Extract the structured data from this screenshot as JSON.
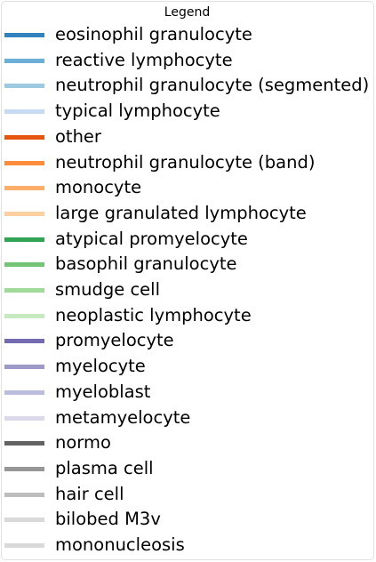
{
  "chart_data": {
    "type": "line",
    "legend": {
      "title": "Legend",
      "entries": [
        {
          "label": "eosinophil granulocyte",
          "color": "#3182bd"
        },
        {
          "label": "reactive lymphocyte",
          "color": "#6baed6"
        },
        {
          "label": "neutrophil granulocyte (segmented)",
          "color": "#9ecae1"
        },
        {
          "label": "typical lymphocyte",
          "color": "#c6dbef"
        },
        {
          "label": "other",
          "color": "#e6550d"
        },
        {
          "label": "neutrophil granulocyte (band)",
          "color": "#fd8d3c"
        },
        {
          "label": "monocyte",
          "color": "#fdae6b"
        },
        {
          "label": "large granulated lymphocyte",
          "color": "#fdd0a2"
        },
        {
          "label": "atypical promyelocyte",
          "color": "#31a354"
        },
        {
          "label": "basophil granulocyte",
          "color": "#74c476"
        },
        {
          "label": "smudge cell",
          "color": "#a1d99b"
        },
        {
          "label": "neoplastic lymphocyte",
          "color": "#c7e9c0"
        },
        {
          "label": "promyelocyte",
          "color": "#756bb1"
        },
        {
          "label": "myelocyte",
          "color": "#9e9ac8"
        },
        {
          "label": "myeloblast",
          "color": "#bcbddc"
        },
        {
          "label": "metamyelocyte",
          "color": "#dadaeb"
        },
        {
          "label": "normo",
          "color": "#636363"
        },
        {
          "label": "plasma cell",
          "color": "#969696"
        },
        {
          "label": "hair cell",
          "color": "#bdbdbd"
        },
        {
          "label": "bilobed M3v",
          "color": "#d9d9d9"
        },
        {
          "label": "mononucleosis",
          "color": "#d9d9d9"
        }
      ]
    }
  }
}
